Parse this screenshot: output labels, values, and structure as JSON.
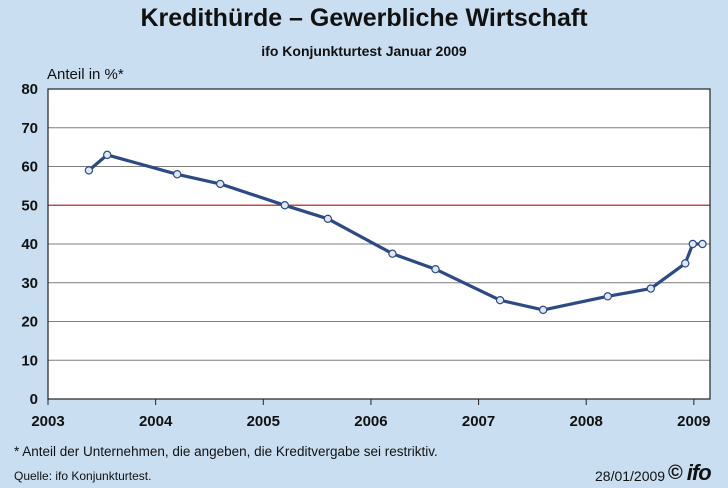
{
  "header": {
    "title": "Kredithürde – Gewerbliche Wirtschaft",
    "subtitle": "ifo Konjunkturtest Januar 2009"
  },
  "footer": {
    "footnote": "* Anteil der Unternehmen, die angeben, die Kreditvergabe sei restriktiv.",
    "source": "Quelle: ifo Konjunkturtest.",
    "date": "28/01/2009",
    "copyright": "©",
    "logo": "ifo"
  },
  "colors": {
    "background": "#c9def1",
    "plot_background": "#ffffff",
    "line": "#2e4a86",
    "marker_fill": "#dfe9f5",
    "reference_line": "#c0392b",
    "grid": "#7f7f7f"
  },
  "chart_data": {
    "type": "line",
    "title": "Kredithürde – Gewerbliche Wirtschaft",
    "subtitle": "ifo Konjunkturtest Januar 2009",
    "ylabel": "Anteil in %*",
    "xlabel": "",
    "x_ticks": [
      "2003",
      "2004",
      "2005",
      "2006",
      "2007",
      "2008",
      "2009"
    ],
    "y_ticks": [
      0,
      10,
      20,
      30,
      40,
      50,
      60,
      70,
      80
    ],
    "xlim": [
      2003,
      2009.15
    ],
    "ylim": [
      0,
      80
    ],
    "grid": true,
    "reference_line": {
      "y": 50
    },
    "series": [
      {
        "x": [
          2003.38,
          2003.55,
          2004.2,
          2004.6,
          2005.2,
          2005.6,
          2006.2,
          2006.6,
          2007.2,
          2007.6,
          2008.2,
          2008.6,
          2008.92,
          2008.99,
          2009.08
        ],
        "y": [
          59,
          63,
          58,
          55.5,
          50,
          46.5,
          37.5,
          33.5,
          25.5,
          23,
          26.5,
          28.5,
          35,
          40,
          40
        ]
      }
    ]
  }
}
